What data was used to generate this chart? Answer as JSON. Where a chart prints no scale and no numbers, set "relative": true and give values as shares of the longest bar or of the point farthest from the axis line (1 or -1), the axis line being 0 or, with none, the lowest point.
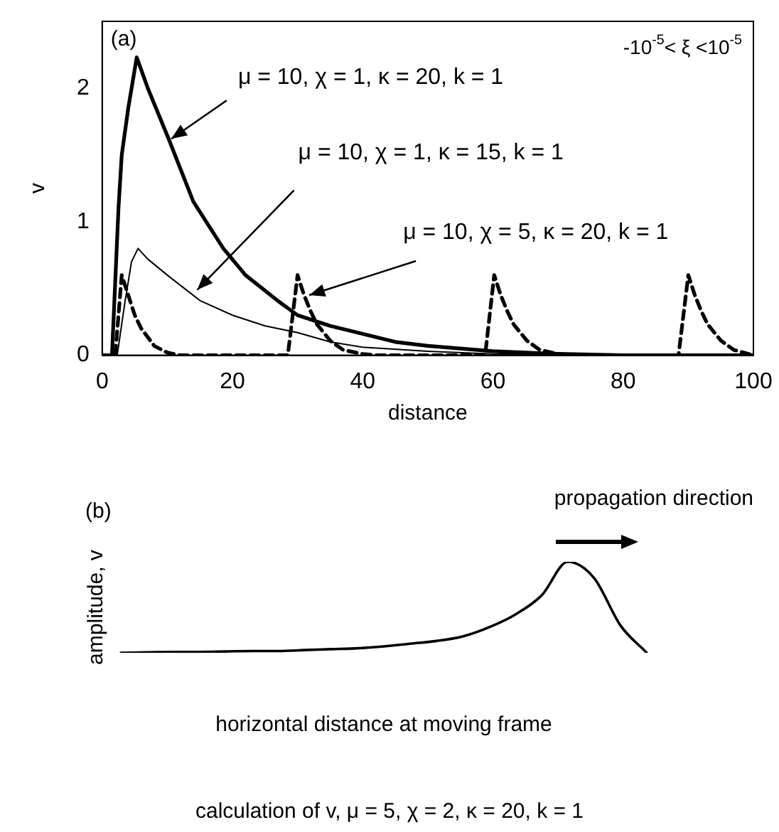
{
  "chart_data": [
    {
      "type": "line",
      "xlabel": "distance",
      "ylabel": "v",
      "xlim": [
        0,
        100
      ],
      "xticks": [
        0,
        20,
        40,
        60,
        80,
        100
      ],
      "ylim": [
        0,
        2.5
      ],
      "yticks": [
        0,
        1,
        2
      ],
      "grid": false,
      "legend": false,
      "marker": "none",
      "annotations": [
        "(a)",
        "-10$^{-5}$< ξ <10$^{-5}$",
        {
          "text": "μ = 10, χ = 1, κ = 20, k = 1",
          "x": 10.6,
          "y": 1.62
        },
        {
          "text": "μ = 10, χ = 1, κ = 15, k = 1",
          "x": 14.6,
          "y": 0.49
        },
        {
          "text": "μ = 10, χ = 5, κ = 20, k = 1",
          "x": 31.8,
          "y": 0.45
        }
      ],
      "series": [
        {
          "color": "#000000",
          "line_style": "solid",
          "x": [
            0,
            1.5,
            2.5,
            3,
            4,
            5.3,
            7,
            10.2,
            14,
            18.6,
            22,
            26.9,
            30,
            35,
            40,
            45,
            50,
            55,
            60,
            70,
            80,
            90,
            100
          ],
          "values": [
            0,
            0,
            1.1,
            1.5,
            1.85,
            2.23,
            2.0,
            1.62,
            1.15,
            0.8,
            0.6,
            0.41,
            0.3,
            0.22,
            0.16,
            0.1,
            0.07,
            0.05,
            0.03,
            0.01,
            0,
            0,
            0
          ]
        },
        {
          "color": "#000000",
          "line_style": "solid",
          "x": [
            0,
            2.3,
            3.5,
            4.5,
            5.5,
            7,
            10,
            15,
            20,
            25,
            30,
            35,
            40,
            50,
            60,
            75,
            100
          ],
          "values": [
            0,
            0,
            0.4,
            0.7,
            0.8,
            0.72,
            0.6,
            0.41,
            0.3,
            0.22,
            0.17,
            0.1,
            0.06,
            0.03,
            0.01,
            0,
            0
          ]
        },
        {
          "color": "#000000",
          "line_style": "dashed",
          "x": [
            0,
            2,
            3,
            4,
            5,
            6,
            8,
            10,
            12,
            28.5,
            30,
            31,
            32,
            33,
            35,
            37,
            40,
            42,
            58.8,
            60.2,
            61.2,
            62.2,
            63.2,
            65.2,
            67.2,
            70,
            72,
            88.5,
            90,
            91,
            92,
            93,
            95,
            97,
            100
          ],
          "values": [
            0,
            0,
            0.6,
            0.45,
            0.3,
            0.2,
            0.07,
            0.02,
            0,
            0,
            0.6,
            0.45,
            0.33,
            0.23,
            0.11,
            0.04,
            0.01,
            0,
            0,
            0.6,
            0.45,
            0.33,
            0.23,
            0.11,
            0.04,
            0.01,
            0,
            0,
            0.6,
            0.45,
            0.33,
            0.23,
            0.11,
            0.04,
            0
          ]
        }
      ]
    },
    {
      "type": "line",
      "relative": true,
      "xlabel": "horizontal distance at moving frame",
      "ylabel": "amplitude, v",
      "grid": false,
      "legend": false,
      "marker": "none",
      "line_style": "solid",
      "annotations": [
        "(b)",
        "propagation direction",
        "calculation of v, μ = 5, χ = 2, κ = 20, k = 1"
      ],
      "categories": [
        null,
        null,
        null,
        null,
        null,
        null,
        null,
        null,
        null,
        null,
        null,
        null,
        null,
        null,
        null,
        null,
        null,
        null,
        null,
        null,
        null
      ],
      "series": [
        {
          "color": "#000000",
          "values": [
            0,
            0.005,
            0.01,
            0.01,
            0.015,
            0.02,
            0.02,
            0.03,
            0.04,
            0.05,
            0.07,
            0.1,
            0.13,
            0.18,
            0.28,
            0.42,
            0.63,
            1,
            0.82,
            0.3,
            0
          ]
        }
      ]
    }
  ]
}
